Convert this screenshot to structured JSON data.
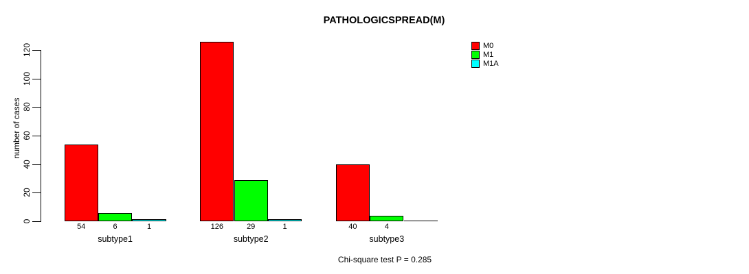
{
  "figure": {
    "title": "PATHOLOGICSPREAD(M)",
    "ylabel": "number of cases",
    "caption": "Chi-square test P = 0.285"
  },
  "legend": {
    "position": "top-right",
    "items": [
      {
        "label": "M0",
        "color": "#FF0000"
      },
      {
        "label": "M1",
        "color": "#00FF00"
      },
      {
        "label": "M1A",
        "color": "#00FFFF"
      }
    ]
  },
  "chart_data": {
    "type": "bar",
    "title": "PATHOLOGICSPREAD(M)",
    "xlabel": "",
    "ylabel": "number of cases",
    "categories": [
      "subtype1",
      "subtype2",
      "subtype3"
    ],
    "series": [
      {
        "name": "M0",
        "color": "#FF0000",
        "values": [
          54,
          126,
          40
        ]
      },
      {
        "name": "M1",
        "color": "#00FF00",
        "values": [
          6,
          29,
          4
        ]
      },
      {
        "name": "M1A",
        "color": "#00FFFF",
        "values": [
          1,
          1,
          0
        ]
      }
    ],
    "bar_labels": [
      [
        "54",
        "6",
        "1"
      ],
      [
        "126",
        "29",
        "1"
      ],
      [
        "40",
        "4",
        ""
      ]
    ],
    "yticks": [
      0,
      20,
      40,
      60,
      80,
      100,
      120
    ],
    "ylim": [
      0,
      130
    ],
    "grid": false,
    "legend_position": "right",
    "annotation": "Chi-square test P = 0.285"
  }
}
